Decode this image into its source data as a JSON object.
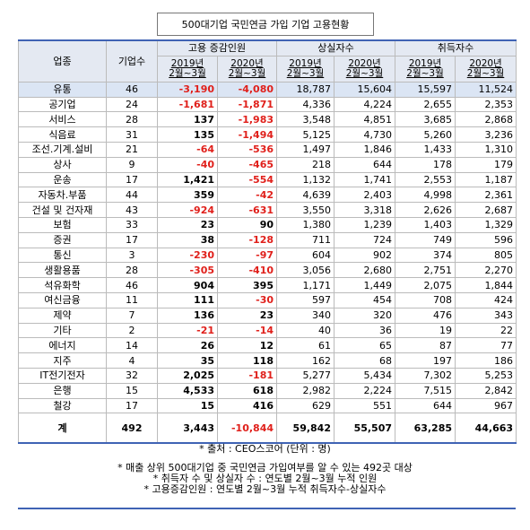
{
  "title": "500대기업 국민연금 가입 기업 고용현황",
  "table": {
    "header": {
      "industry": "업종",
      "count": "기업수",
      "groups": [
        "고용 증감인원",
        "상실자수",
        "취득자수"
      ],
      "periods": [
        "2019년\n2월~3월",
        "2020년\n2월~3월",
        "2019년\n2월~3월",
        "2020년\n2월~3월",
        "2019년\n2월~3월",
        "2020년\n2월~3월"
      ]
    },
    "rows": [
      [
        "유통",
        "46",
        "-3,190",
        "-4,080",
        "18,787",
        "15,604",
        "15,597",
        "11,524"
      ],
      [
        "공기업",
        "24",
        "-1,681",
        "-1,871",
        "4,336",
        "4,224",
        "2,655",
        "2,353"
      ],
      [
        "서비스",
        "28",
        "137",
        "-1,983",
        "3,548",
        "4,851",
        "3,685",
        "2,868"
      ],
      [
        "식음료",
        "31",
        "135",
        "-1,494",
        "5,125",
        "4,730",
        "5,260",
        "3,236"
      ],
      [
        "조선.기계.설비",
        "21",
        "-64",
        "-536",
        "1,497",
        "1,846",
        "1,433",
        "1,310"
      ],
      [
        "상사",
        "9",
        "-40",
        "-465",
        "218",
        "644",
        "178",
        "179"
      ],
      [
        "운송",
        "17",
        "1,421",
        "-554",
        "1,132",
        "1,741",
        "2,553",
        "1,187"
      ],
      [
        "자동차.부품",
        "44",
        "359",
        "-42",
        "4,639",
        "2,403",
        "4,998",
        "2,361"
      ],
      [
        "건설 및 건자재",
        "43",
        "-924",
        "-631",
        "3,550",
        "3,318",
        "2,626",
        "2,687"
      ],
      [
        "보험",
        "33",
        "23",
        "90",
        "1,380",
        "1,239",
        "1,403",
        "1,329"
      ],
      [
        "증권",
        "17",
        "38",
        "-128",
        "711",
        "724",
        "749",
        "596"
      ],
      [
        "통신",
        "3",
        "-230",
        "-97",
        "604",
        "902",
        "374",
        "805"
      ],
      [
        "생활용품",
        "28",
        "-305",
        "-410",
        "3,056",
        "2,680",
        "2,751",
        "2,270"
      ],
      [
        "석유화학",
        "46",
        "904",
        "395",
        "1,171",
        "1,449",
        "2,075",
        "1,844"
      ],
      [
        "여신금융",
        "11",
        "111",
        "-30",
        "597",
        "454",
        "708",
        "424"
      ],
      [
        "제약",
        "7",
        "136",
        "23",
        "340",
        "320",
        "476",
        "343"
      ],
      [
        "기타",
        "2",
        "-21",
        "-14",
        "40",
        "36",
        "19",
        "22"
      ],
      [
        "에너지",
        "14",
        "26",
        "12",
        "61",
        "65",
        "87",
        "77"
      ],
      [
        "지주",
        "4",
        "35",
        "118",
        "162",
        "68",
        "197",
        "186"
      ],
      [
        "IT전기전자",
        "32",
        "2,025",
        "-181",
        "5,277",
        "5,434",
        "7,302",
        "5,253"
      ],
      [
        "은행",
        "15",
        "4,533",
        "618",
        "2,982",
        "2,224",
        "7,515",
        "2,842"
      ],
      [
        "철강",
        "17",
        "15",
        "416",
        "629",
        "551",
        "644",
        "967"
      ]
    ],
    "total": [
      "계",
      "492",
      "3,443",
      "-10,844",
      "59,842",
      "55,507",
      "63,285",
      "44,663"
    ]
  },
  "source": "* 출처 : CEO스코어 (단위 : 명)",
  "notes": [
    "* 매출 상위 500대기업 중 국민연금 가입여부를 알 수 있는 492곳 대상",
    "* 취득자 수 및 상실자 수 : 연도별 2월~3월 누적 인원",
    "* 고용증감인원 : 연도별 2월~3월 누적 취득자수-상실자수"
  ]
}
